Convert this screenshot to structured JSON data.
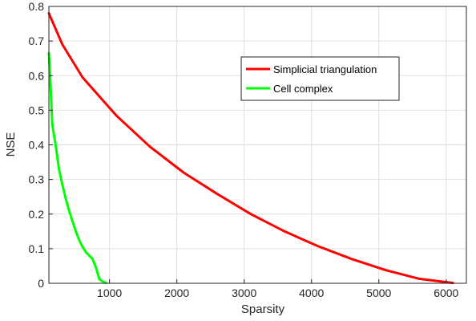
{
  "chart_data": {
    "type": "line",
    "title": "",
    "xlabel": "Sparsity",
    "ylabel": "NSE",
    "xlim": [
      100,
      6300
    ],
    "ylim": [
      0,
      0.8
    ],
    "xticks": [
      1000,
      2000,
      3000,
      4000,
      5000,
      6000
    ],
    "xtick_labels": [
      "1000",
      "2000",
      "3000",
      "4000",
      "5000",
      "6000"
    ],
    "yticks": [
      0,
      0.1,
      0.2,
      0.3,
      0.4,
      0.5,
      0.6,
      0.7,
      0.8
    ],
    "ytick_labels": [
      "0",
      "0.1",
      "0.2",
      "0.3",
      "0.4",
      "0.5",
      "0.6",
      "0.7",
      "0.8"
    ],
    "grid": true,
    "legend_position": "top-right",
    "series": [
      {
        "name": "Simplicial triangulation",
        "color": "#ff0000",
        "x": [
          100,
          300,
          600,
          1100,
          1600,
          2100,
          2600,
          3100,
          3600,
          4100,
          4600,
          5100,
          5600,
          6100
        ],
        "y": [
          0.78,
          0.69,
          0.595,
          0.485,
          0.395,
          0.32,
          0.258,
          0.2,
          0.15,
          0.107,
          0.07,
          0.038,
          0.013,
          0.001
        ]
      },
      {
        "name": "Cell complex",
        "color": "#00ff00",
        "x": [
          100,
          120,
          150,
          200,
          250,
          300,
          350,
          400,
          450,
          500,
          550,
          600,
          650,
          700,
          750,
          800,
          850,
          900,
          950
        ],
        "y": [
          0.665,
          0.59,
          0.46,
          0.4,
          0.33,
          0.285,
          0.245,
          0.21,
          0.18,
          0.15,
          0.125,
          0.105,
          0.09,
          0.08,
          0.07,
          0.045,
          0.012,
          0.005,
          0.001
        ]
      }
    ]
  }
}
